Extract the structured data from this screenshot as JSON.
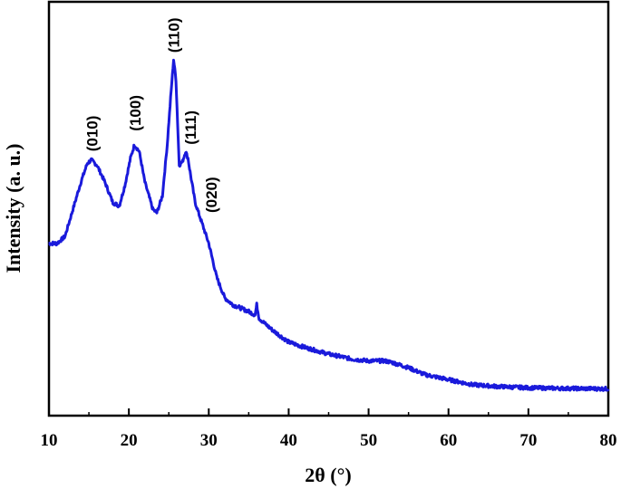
{
  "chart_data": {
    "type": "line",
    "title": "",
    "xlabel": "2θ (°)",
    "ylabel": "Intensity (a. u.)",
    "xlim": [
      10,
      80
    ],
    "ylim": [
      0,
      100
    ],
    "y_ticks_labeled": false,
    "grid": false,
    "legend": "none",
    "x_ticks": [
      "10",
      "20",
      "30",
      "40",
      "50",
      "60",
      "70",
      "80"
    ],
    "series": [
      {
        "color": "#1a1adb",
        "x": [
          10,
          11,
          12,
          13,
          14,
          14.8,
          15.3,
          16,
          17,
          18,
          18.8,
          19.5,
          20.2,
          20.7,
          21.3,
          22,
          23,
          23.5,
          24.2,
          24.8,
          25.3,
          25.6,
          25.9,
          26.3,
          26.7,
          27.1,
          27.4,
          27.8,
          28.3,
          29,
          30,
          31,
          32,
          33,
          34,
          35,
          35.8,
          36,
          36.3,
          37,
          38,
          40,
          42,
          45,
          48,
          50,
          52,
          53,
          55,
          57,
          60,
          63,
          66,
          70,
          75,
          80
        ],
        "values": [
          45,
          45,
          47,
          55,
          63,
          68.5,
          69.5,
          68,
          63,
          57,
          56,
          62,
          70,
          74,
          72,
          63,
          55,
          54,
          59,
          74,
          90,
          99,
          93,
          68,
          69,
          72,
          70,
          64,
          57,
          52,
          45,
          35,
          29,
          27,
          26,
          25,
          24,
          27,
          23,
          21.5,
          19.5,
          16,
          14.5,
          12.5,
          11,
          10.5,
          10.5,
          10,
          8.5,
          6.5,
          5,
          3.5,
          3,
          2.6,
          2.4,
          2.3
        ]
      }
    ],
    "annotations": [
      {
        "text": "(010)",
        "x": 15.4,
        "y": 72
      },
      {
        "text": "(100)",
        "x": 20.8,
        "y": 78
      },
      {
        "text": "(110)",
        "x": 25.6,
        "y": 101
      },
      {
        "text": "(111)",
        "x": 27.7,
        "y": 74
      },
      {
        "text": "(020)",
        "x": 30.3,
        "y": 54
      }
    ]
  }
}
